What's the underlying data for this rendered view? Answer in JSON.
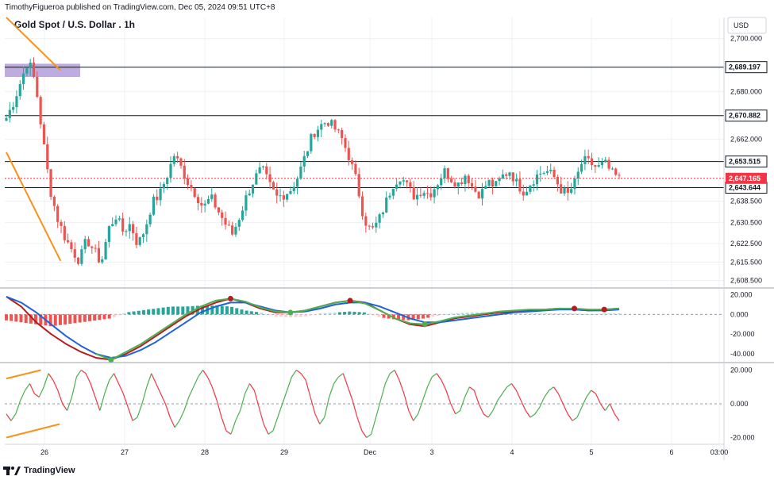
{
  "header": {
    "published_text": "TimothyFigueroa published on TradingView.com, Dec 05, 2024 09:51 UTC+8"
  },
  "title": "Gold Spot / U.S. Dollar . 1h",
  "footer": {
    "brand": "TradingView"
  },
  "chart_data": [
    {
      "type": "candlestick",
      "panel": "price",
      "currency_label": "USD",
      "y_ticks": [
        "2,700.000",
        "2,680.000",
        "2,662.000",
        "2,638.500",
        "2,630.500",
        "2,622.500",
        "2,615.500",
        "2,608.500"
      ],
      "ylim": [
        2606,
        2708
      ],
      "x_labels": [
        "26",
        "27",
        "28",
        "29",
        "Dec",
        "3",
        "4",
        "5",
        "6",
        "03:00"
      ],
      "horizontal_levels": [
        {
          "value": 2689.197,
          "label": "2,689.197"
        },
        {
          "value": 2670.882,
          "label": "2,670.882"
        },
        {
          "value": 2653.515,
          "label": "2,653.515"
        },
        {
          "value": 2643.644,
          "label": "2,643.644"
        }
      ],
      "last_price": {
        "value": 2647.165,
        "label": "2,647.165",
        "color": "#f23645"
      },
      "supply_zone": {
        "from": 2685.5,
        "to": 2690.5,
        "color": "#b39ddb"
      },
      "trendlines": [
        {
          "from": [
            0,
            2708
          ],
          "to": [
            2.2,
            2688
          ],
          "color": "#f7931a"
        },
        {
          "from": [
            0,
            2657
          ],
          "to": [
            2.2,
            2616
          ],
          "color": "#f7931a"
        }
      ],
      "close_path": [
        2670,
        2676,
        2684,
        2692,
        2683,
        2662,
        2643,
        2632,
        2625,
        2620,
        2616,
        2624,
        2620,
        2615,
        2628,
        2633,
        2627,
        2630,
        2622,
        2628,
        2638,
        2641,
        2648,
        2656,
        2651,
        2645,
        2641,
        2636,
        2640,
        2635,
        2630,
        2626,
        2633,
        2641,
        2647,
        2651,
        2645,
        2640,
        2641,
        2643,
        2648,
        2656,
        2664,
        2667,
        2669,
        2666,
        2662,
        2655,
        2646,
        2632,
        2627,
        2631,
        2638,
        2645,
        2648,
        2644,
        2640,
        2643,
        2641,
        2645,
        2650,
        2647,
        2645,
        2649,
        2643,
        2641,
        2646,
        2644,
        2648,
        2650,
        2645,
        2642,
        2646,
        2649,
        2650,
        2648,
        2643,
        2641,
        2646,
        2654,
        2653,
        2651,
        2653,
        2649,
        2647
      ],
      "up_color": "#26a69a",
      "down_color": "#ef5350"
    },
    {
      "type": "line",
      "panel": "macd",
      "y_ticks": [
        "20.000",
        "0.000",
        "-20.000",
        "-40.000"
      ],
      "ylim": [
        -48,
        26
      ],
      "zero_line": 0,
      "series": [
        {
          "color": "#b71c1c",
          "values": [
            18,
            8,
            -8,
            -20,
            -30,
            -38,
            -44,
            -46,
            -40,
            -32,
            -22,
            -12,
            -2,
            6,
            12,
            16,
            12,
            6,
            2,
            2,
            4,
            8,
            12,
            14,
            12,
            4,
            -4,
            -10,
            -12,
            -8,
            -4,
            -2,
            0,
            2,
            3,
            4,
            5,
            6,
            5,
            4,
            5,
            6
          ]
        },
        {
          "color": "#1e63d8",
          "values": [
            18,
            12,
            2,
            -10,
            -22,
            -32,
            -40,
            -44,
            -42,
            -36,
            -28,
            -18,
            -8,
            2,
            8,
            12,
            12,
            8,
            4,
            2,
            3,
            6,
            10,
            12,
            12,
            8,
            2,
            -4,
            -8,
            -8,
            -6,
            -4,
            -2,
            0,
            2,
            3,
            4,
            5,
            5,
            4,
            4,
            5
          ]
        },
        {
          "color": "#4caf50",
          "values": [
            null,
            null,
            null,
            null,
            null,
            null,
            -40,
            -46,
            -38,
            -30,
            -20,
            -10,
            0,
            8,
            14,
            16,
            13,
            7,
            3,
            2,
            4,
            8,
            12,
            14,
            11,
            4,
            -4,
            -9,
            -10,
            -7,
            -3,
            -1,
            1,
            3,
            4,
            5,
            5,
            6,
            6,
            5,
            5,
            6
          ]
        }
      ],
      "histogram": [
        -6,
        -8,
        -10,
        -12,
        -10,
        -8,
        -6,
        -4,
        2,
        4,
        6,
        8,
        8,
        9,
        9,
        8,
        4,
        2,
        -2,
        -3,
        -2,
        1,
        2,
        3,
        2,
        -3,
        -5,
        -6,
        -4,
        -1,
        1,
        2,
        2,
        2,
        1,
        1,
        1,
        1,
        1,
        0,
        1,
        1
      ],
      "markers": [
        {
          "index": 7,
          "value": -46,
          "color": "#4caf50"
        },
        {
          "index": 15,
          "value": 16,
          "color": "#b71c1c"
        },
        {
          "index": 19,
          "value": 2,
          "color": "#4caf50"
        },
        {
          "index": 23,
          "value": 14,
          "color": "#b71c1c"
        },
        {
          "index": 28,
          "value": -10,
          "color": "#4caf50"
        },
        {
          "index": 38,
          "value": 6,
          "color": "#b71c1c"
        },
        {
          "index": 40,
          "value": 5,
          "color": "#b71c1c"
        }
      ]
    },
    {
      "type": "line",
      "panel": "oscillator",
      "y_ticks": [
        "20.000",
        "0.000",
        "-20.000"
      ],
      "ylim": [
        -24,
        24
      ],
      "zero_line": 0,
      "values": [
        -6,
        -10,
        -6,
        2,
        8,
        12,
        6,
        4,
        10,
        18,
        14,
        8,
        0,
        -4,
        4,
        16,
        20,
        18,
        12,
        4,
        -4,
        6,
        14,
        18,
        12,
        6,
        -2,
        -10,
        -8,
        0,
        10,
        18,
        12,
        6,
        0,
        -8,
        -14,
        -10,
        -4,
        4,
        10,
        16,
        20,
        16,
        10,
        2,
        -8,
        -16,
        -18,
        -10,
        -4,
        6,
        12,
        8,
        -2,
        -12,
        -18,
        -16,
        -8,
        0,
        8,
        16,
        20,
        18,
        14,
        4,
        -6,
        -12,
        -8,
        4,
        12,
        16,
        18,
        10,
        2,
        -8,
        -16,
        -20,
        -18,
        -8,
        2,
        12,
        18,
        20,
        14,
        6,
        -4,
        -10,
        -6,
        2,
        10,
        16,
        18,
        14,
        8,
        0,
        -6,
        -4,
        4,
        10,
        8,
        0,
        -6,
        -8,
        -4,
        2,
        6,
        10,
        12,
        8,
        2,
        -4,
        -8,
        -6,
        -2,
        4,
        8,
        10,
        6,
        0,
        -6,
        -10,
        -8,
        -2,
        4,
        8,
        6,
        0,
        -4,
        0,
        -6,
        -10
      ],
      "up_color": "#4caf50",
      "down_color": "#f23645",
      "divergence_lines": [
        {
          "from": [
            0,
            15
          ],
          "to": [
            4,
            20
          ],
          "color": "#f7931a"
        },
        {
          "from": [
            0,
            -20
          ],
          "to": [
            8,
            -12
          ],
          "color": "#f7931a"
        }
      ]
    }
  ]
}
